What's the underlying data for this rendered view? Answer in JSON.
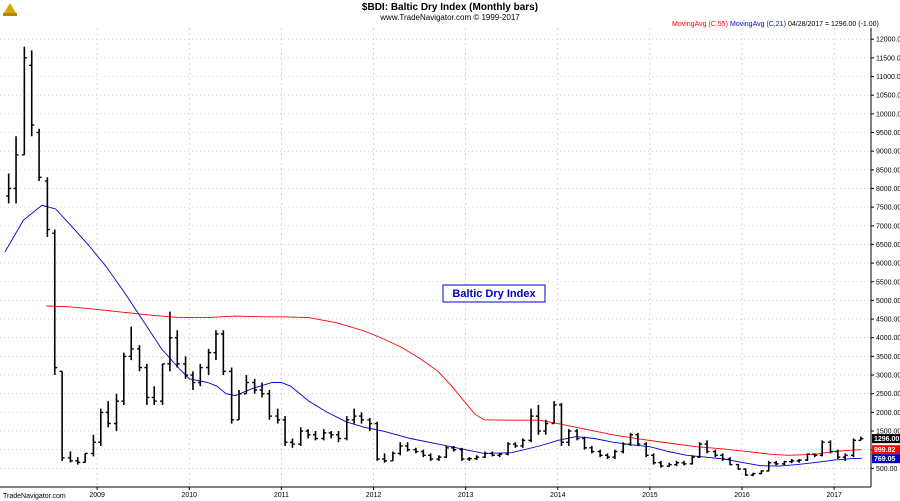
{
  "header": {
    "title": "$BDI:  Baltic Dry Index  (Monthly bars)",
    "subtitle": "www.TradeNavigator.com © 1999-2017"
  },
  "legend": {
    "ma55_label": "MovingAvg (C,55)",
    "ma21_label": "MovingAvg (C,21)",
    "last_info": "04/28/2017 = 1296.00 (-1.00)"
  },
  "annotation": {
    "text": "Baltic Dry Index"
  },
  "brand": "TradeNavigator.com",
  "colors": {
    "bars": "#000000",
    "ma55": "#ff0000",
    "ma21": "#0000cc",
    "grid": "#bbbbbb",
    "price_badge": "#000000"
  },
  "badges": {
    "price": "1296.00",
    "ma55": "999.82",
    "ma21": "769.05"
  },
  "chart_data": {
    "type": "ohlc",
    "title": "$BDI:  Baltic Dry Index  (Monthly bars)",
    "y_ticks": [
      "500.00",
      "1000.00",
      "1500.00",
      "2000.00",
      "2500.00",
      "3000.00",
      "3500.00",
      "4000.00",
      "4500.00",
      "5000.00",
      "5500.00",
      "6000.00",
      "6500.00",
      "7000.00",
      "7500.00",
      "8000.00",
      "8500.00",
      "9000.00",
      "9500.00",
      "10000.00",
      "10500.00",
      "11000.00",
      "11500.00",
      "12000.00"
    ],
    "ylim": [
      0,
      12300
    ],
    "x_ticks": [
      "2009",
      "2010",
      "2011",
      "2012",
      "2013",
      "2014",
      "2015",
      "2016",
      "2017"
    ],
    "x_range": [
      2008.0,
      2017.4
    ],
    "grid": true,
    "bars": [
      {
        "t": 2008.04,
        "o": 7800,
        "h": 8400,
        "l": 7600,
        "c": 8000
      },
      {
        "t": 2008.12,
        "o": 8000,
        "h": 9400,
        "l": 7600,
        "c": 8900
      },
      {
        "t": 2008.21,
        "o": 8900,
        "h": 11800,
        "l": 8900,
        "c": 11500
      },
      {
        "t": 2008.29,
        "o": 11300,
        "h": 11700,
        "l": 9400,
        "c": 9700
      },
      {
        "t": 2008.37,
        "o": 9500,
        "h": 9600,
        "l": 8200,
        "c": 8300
      },
      {
        "t": 2008.46,
        "o": 8200,
        "h": 8300,
        "l": 6700,
        "c": 6900
      },
      {
        "t": 2008.54,
        "o": 6800,
        "h": 6900,
        "l": 3000,
        "c": 3200
      },
      {
        "t": 2008.62,
        "o": 3100,
        "h": 3100,
        "l": 700,
        "c": 780
      },
      {
        "t": 2008.71,
        "o": 780,
        "h": 950,
        "l": 660,
        "c": 700
      },
      {
        "t": 2008.79,
        "o": 700,
        "h": 800,
        "l": 600,
        "c": 660
      },
      {
        "t": 2008.87,
        "o": 660,
        "h": 900,
        "l": 650,
        "c": 900
      },
      {
        "t": 2008.96,
        "o": 900,
        "h": 1400,
        "l": 820,
        "c": 1200
      },
      {
        "t": 2009.04,
        "o": 1200,
        "h": 2100,
        "l": 1100,
        "c": 2000
      },
      {
        "t": 2009.12,
        "o": 2000,
        "h": 2300,
        "l": 1600,
        "c": 1700
      },
      {
        "t": 2009.21,
        "o": 1700,
        "h": 2500,
        "l": 1500,
        "c": 2300
      },
      {
        "t": 2009.29,
        "o": 2300,
        "h": 3600,
        "l": 2200,
        "c": 3500
      },
      {
        "t": 2009.37,
        "o": 3500,
        "h": 4300,
        "l": 3400,
        "c": 3700
      },
      {
        "t": 2009.46,
        "o": 3700,
        "h": 3800,
        "l": 3100,
        "c": 3200
      },
      {
        "t": 2009.54,
        "o": 3200,
        "h": 3300,
        "l": 2200,
        "c": 2400
      },
      {
        "t": 2009.62,
        "o": 2400,
        "h": 2700,
        "l": 2200,
        "c": 2300
      },
      {
        "t": 2009.71,
        "o": 2300,
        "h": 3300,
        "l": 2200,
        "c": 3300
      },
      {
        "t": 2009.79,
        "o": 3300,
        "h": 4700,
        "l": 3100,
        "c": 4000
      },
      {
        "t": 2009.87,
        "o": 4000,
        "h": 4200,
        "l": 3200,
        "c": 3300
      },
      {
        "t": 2009.96,
        "o": 3300,
        "h": 3500,
        "l": 2900,
        "c": 3000
      },
      {
        "t": 2010.04,
        "o": 3000,
        "h": 3100,
        "l": 2600,
        "c": 2800
      },
      {
        "t": 2010.12,
        "o": 2800,
        "h": 3300,
        "l": 2700,
        "c": 3200
      },
      {
        "t": 2010.21,
        "o": 3200,
        "h": 3700,
        "l": 3000,
        "c": 3600
      },
      {
        "t": 2010.29,
        "o": 3600,
        "h": 4200,
        "l": 3400,
        "c": 4100
      },
      {
        "t": 2010.37,
        "o": 4100,
        "h": 4200,
        "l": 3000,
        "c": 3100
      },
      {
        "t": 2010.46,
        "o": 3100,
        "h": 3200,
        "l": 1700,
        "c": 1800
      },
      {
        "t": 2010.54,
        "o": 1800,
        "h": 2600,
        "l": 1800,
        "c": 2500
      },
      {
        "t": 2010.62,
        "o": 2500,
        "h": 3000,
        "l": 2500,
        "c": 2800
      },
      {
        "t": 2010.71,
        "o": 2800,
        "h": 2900,
        "l": 2500,
        "c": 2600
      },
      {
        "t": 2010.79,
        "o": 2600,
        "h": 2800,
        "l": 2400,
        "c": 2500
      },
      {
        "t": 2010.87,
        "o": 2500,
        "h": 2600,
        "l": 1800,
        "c": 1900
      },
      {
        "t": 2010.96,
        "o": 1900,
        "h": 2100,
        "l": 1700,
        "c": 1800
      },
      {
        "t": 2011.04,
        "o": 1800,
        "h": 1900,
        "l": 1100,
        "c": 1200
      },
      {
        "t": 2011.12,
        "o": 1200,
        "h": 1300,
        "l": 1050,
        "c": 1150
      },
      {
        "t": 2011.21,
        "o": 1150,
        "h": 1600,
        "l": 1100,
        "c": 1500
      },
      {
        "t": 2011.29,
        "o": 1500,
        "h": 1550,
        "l": 1300,
        "c": 1400
      },
      {
        "t": 2011.37,
        "o": 1400,
        "h": 1500,
        "l": 1250,
        "c": 1300
      },
      {
        "t": 2011.46,
        "o": 1300,
        "h": 1550,
        "l": 1250,
        "c": 1450
      },
      {
        "t": 2011.54,
        "o": 1450,
        "h": 1500,
        "l": 1300,
        "c": 1400
      },
      {
        "t": 2011.62,
        "o": 1400,
        "h": 1500,
        "l": 1200,
        "c": 1300
      },
      {
        "t": 2011.71,
        "o": 1300,
        "h": 1900,
        "l": 1250,
        "c": 1800
      },
      {
        "t": 2011.79,
        "o": 1800,
        "h": 2100,
        "l": 1700,
        "c": 1900
      },
      {
        "t": 2011.87,
        "o": 1900,
        "h": 2000,
        "l": 1700,
        "c": 1800
      },
      {
        "t": 2011.96,
        "o": 1800,
        "h": 1850,
        "l": 1500,
        "c": 1700
      },
      {
        "t": 2012.04,
        "o": 1700,
        "h": 1750,
        "l": 700,
        "c": 750
      },
      {
        "t": 2012.12,
        "o": 750,
        "h": 900,
        "l": 650,
        "c": 700
      },
      {
        "t": 2012.21,
        "o": 700,
        "h": 950,
        "l": 700,
        "c": 900
      },
      {
        "t": 2012.29,
        "o": 900,
        "h": 1200,
        "l": 850,
        "c": 1100
      },
      {
        "t": 2012.37,
        "o": 1100,
        "h": 1200,
        "l": 950,
        "c": 1000
      },
      {
        "t": 2012.46,
        "o": 1000,
        "h": 1050,
        "l": 900,
        "c": 950
      },
      {
        "t": 2012.54,
        "o": 950,
        "h": 1000,
        "l": 800,
        "c": 850
      },
      {
        "t": 2012.62,
        "o": 850,
        "h": 900,
        "l": 700,
        "c": 750
      },
      {
        "t": 2012.71,
        "o": 750,
        "h": 850,
        "l": 700,
        "c": 800
      },
      {
        "t": 2012.79,
        "o": 800,
        "h": 1100,
        "l": 780,
        "c": 1050
      },
      {
        "t": 2012.87,
        "o": 1050,
        "h": 1100,
        "l": 950,
        "c": 1000
      },
      {
        "t": 2012.96,
        "o": 1000,
        "h": 1050,
        "l": 700,
        "c": 750
      },
      {
        "t": 2013.04,
        "o": 750,
        "h": 800,
        "l": 700,
        "c": 760
      },
      {
        "t": 2013.12,
        "o": 760,
        "h": 850,
        "l": 720,
        "c": 800
      },
      {
        "t": 2013.21,
        "o": 800,
        "h": 950,
        "l": 780,
        "c": 900
      },
      {
        "t": 2013.29,
        "o": 900,
        "h": 950,
        "l": 820,
        "c": 850
      },
      {
        "t": 2013.37,
        "o": 850,
        "h": 900,
        "l": 800,
        "c": 880
      },
      {
        "t": 2013.46,
        "o": 880,
        "h": 1200,
        "l": 850,
        "c": 1150
      },
      {
        "t": 2013.54,
        "o": 1150,
        "h": 1200,
        "l": 1050,
        "c": 1100
      },
      {
        "t": 2013.62,
        "o": 1100,
        "h": 1300,
        "l": 1050,
        "c": 1250
      },
      {
        "t": 2013.71,
        "o": 1250,
        "h": 2100,
        "l": 1200,
        "c": 1900
      },
      {
        "t": 2013.79,
        "o": 1900,
        "h": 2200,
        "l": 1400,
        "c": 1500
      },
      {
        "t": 2013.87,
        "o": 1500,
        "h": 1800,
        "l": 1400,
        "c": 1700
      },
      {
        "t": 2013.96,
        "o": 1700,
        "h": 2300,
        "l": 1700,
        "c": 2200
      },
      {
        "t": 2014.04,
        "o": 2200,
        "h": 2250,
        "l": 1100,
        "c": 1200
      },
      {
        "t": 2014.12,
        "o": 1200,
        "h": 1550,
        "l": 1100,
        "c": 1500
      },
      {
        "t": 2014.21,
        "o": 1500,
        "h": 1550,
        "l": 1250,
        "c": 1300
      },
      {
        "t": 2014.29,
        "o": 1300,
        "h": 1350,
        "l": 1000,
        "c": 1050
      },
      {
        "t": 2014.37,
        "o": 1050,
        "h": 1100,
        "l": 900,
        "c": 950
      },
      {
        "t": 2014.46,
        "o": 950,
        "h": 1000,
        "l": 800,
        "c": 850
      },
      {
        "t": 2014.54,
        "o": 850,
        "h": 900,
        "l": 750,
        "c": 800
      },
      {
        "t": 2014.62,
        "o": 800,
        "h": 1000,
        "l": 750,
        "c": 950
      },
      {
        "t": 2014.71,
        "o": 950,
        "h": 1200,
        "l": 900,
        "c": 1150
      },
      {
        "t": 2014.79,
        "o": 1150,
        "h": 1450,
        "l": 1100,
        "c": 1400
      },
      {
        "t": 2014.87,
        "o": 1400,
        "h": 1450,
        "l": 1100,
        "c": 1150
      },
      {
        "t": 2014.96,
        "o": 1150,
        "h": 1200,
        "l": 800,
        "c": 850
      },
      {
        "t": 2015.04,
        "o": 850,
        "h": 900,
        "l": 600,
        "c": 650
      },
      {
        "t": 2015.12,
        "o": 650,
        "h": 700,
        "l": 520,
        "c": 560
      },
      {
        "t": 2015.21,
        "o": 560,
        "h": 650,
        "l": 540,
        "c": 600
      },
      {
        "t": 2015.29,
        "o": 600,
        "h": 700,
        "l": 560,
        "c": 650
      },
      {
        "t": 2015.37,
        "o": 650,
        "h": 700,
        "l": 580,
        "c": 620
      },
      {
        "t": 2015.46,
        "o": 620,
        "h": 850,
        "l": 600,
        "c": 800
      },
      {
        "t": 2015.54,
        "o": 800,
        "h": 1200,
        "l": 780,
        "c": 1150
      },
      {
        "t": 2015.62,
        "o": 1150,
        "h": 1250,
        "l": 900,
        "c": 950
      },
      {
        "t": 2015.71,
        "o": 950,
        "h": 1000,
        "l": 800,
        "c": 850
      },
      {
        "t": 2015.79,
        "o": 850,
        "h": 900,
        "l": 700,
        "c": 750
      },
      {
        "t": 2015.87,
        "o": 750,
        "h": 800,
        "l": 580,
        "c": 600
      },
      {
        "t": 2015.96,
        "o": 600,
        "h": 620,
        "l": 460,
        "c": 480
      },
      {
        "t": 2016.04,
        "o": 480,
        "h": 500,
        "l": 300,
        "c": 320
      },
      {
        "t": 2016.12,
        "o": 320,
        "h": 380,
        "l": 290,
        "c": 360
      },
      {
        "t": 2016.21,
        "o": 360,
        "h": 450,
        "l": 350,
        "c": 430
      },
      {
        "t": 2016.29,
        "o": 430,
        "h": 700,
        "l": 420,
        "c": 650
      },
      {
        "t": 2016.37,
        "o": 650,
        "h": 700,
        "l": 580,
        "c": 620
      },
      {
        "t": 2016.46,
        "o": 620,
        "h": 700,
        "l": 590,
        "c": 680
      },
      {
        "t": 2016.54,
        "o": 680,
        "h": 750,
        "l": 640,
        "c": 700
      },
      {
        "t": 2016.62,
        "o": 700,
        "h": 750,
        "l": 650,
        "c": 720
      },
      {
        "t": 2016.71,
        "o": 720,
        "h": 900,
        "l": 700,
        "c": 880
      },
      {
        "t": 2016.79,
        "o": 880,
        "h": 900,
        "l": 800,
        "c": 850
      },
      {
        "t": 2016.87,
        "o": 850,
        "h": 1250,
        "l": 820,
        "c": 1200
      },
      {
        "t": 2016.96,
        "o": 1200,
        "h": 1250,
        "l": 900,
        "c": 950
      },
      {
        "t": 2017.04,
        "o": 950,
        "h": 1000,
        "l": 750,
        "c": 800
      },
      {
        "t": 2017.12,
        "o": 800,
        "h": 900,
        "l": 700,
        "c": 850
      },
      {
        "t": 2017.21,
        "o": 850,
        "h": 1300,
        "l": 800,
        "c": 1250
      },
      {
        "t": 2017.29,
        "o": 1250,
        "h": 1350,
        "l": 1250,
        "c": 1296
      }
    ],
    "series": [
      {
        "name": "MovingAvg (C,55)",
        "color": "#ff0000",
        "points": [
          [
            2008.45,
            4850
          ],
          [
            2008.7,
            4830
          ],
          [
            2009.0,
            4760
          ],
          [
            2009.3,
            4680
          ],
          [
            2009.6,
            4600
          ],
          [
            2009.9,
            4540
          ],
          [
            2010.2,
            4540
          ],
          [
            2010.5,
            4580
          ],
          [
            2010.8,
            4560
          ],
          [
            2011.0,
            4560
          ],
          [
            2011.3,
            4540
          ],
          [
            2011.6,
            4400
          ],
          [
            2011.9,
            4180
          ],
          [
            2012.1,
            3980
          ],
          [
            2012.3,
            3750
          ],
          [
            2012.5,
            3450
          ],
          [
            2012.7,
            3100
          ],
          [
            2012.85,
            2700
          ],
          [
            2013.0,
            2250
          ],
          [
            2013.1,
            1950
          ],
          [
            2013.2,
            1800
          ],
          [
            2013.5,
            1790
          ],
          [
            2013.8,
            1790
          ],
          [
            2014.0,
            1700
          ],
          [
            2014.3,
            1550
          ],
          [
            2014.6,
            1400
          ],
          [
            2014.9,
            1280
          ],
          [
            2015.2,
            1180
          ],
          [
            2015.5,
            1080
          ],
          [
            2015.8,
            1020
          ],
          [
            2016.1,
            940
          ],
          [
            2016.3,
            880
          ],
          [
            2016.5,
            850
          ],
          [
            2016.8,
            880
          ],
          [
            2017.0,
            950
          ],
          [
            2017.2,
            990
          ],
          [
            2017.3,
            1000
          ]
        ]
      },
      {
        "name": "MovingAvg (C,21)",
        "color": "#0000cc",
        "points": [
          [
            2008.0,
            6300
          ],
          [
            2008.2,
            7150
          ],
          [
            2008.4,
            7550
          ],
          [
            2008.55,
            7450
          ],
          [
            2008.7,
            7050
          ],
          [
            2008.9,
            6500
          ],
          [
            2009.1,
            5900
          ],
          [
            2009.3,
            5200
          ],
          [
            2009.5,
            4450
          ],
          [
            2009.7,
            3700
          ],
          [
            2009.9,
            3150
          ],
          [
            2010.0,
            2900
          ],
          [
            2010.2,
            2800
          ],
          [
            2010.3,
            2700
          ],
          [
            2010.4,
            2500
          ],
          [
            2010.5,
            2450
          ],
          [
            2010.7,
            2650
          ],
          [
            2010.9,
            2800
          ],
          [
            2011.0,
            2800
          ],
          [
            2011.1,
            2700
          ],
          [
            2011.3,
            2300
          ],
          [
            2011.5,
            2000
          ],
          [
            2011.7,
            1750
          ],
          [
            2011.9,
            1600
          ],
          [
            2012.1,
            1500
          ],
          [
            2012.4,
            1300
          ],
          [
            2012.7,
            1150
          ],
          [
            2013.0,
            1000
          ],
          [
            2013.2,
            900
          ],
          [
            2013.5,
            920
          ],
          [
            2013.8,
            1100
          ],
          [
            2014.0,
            1250
          ],
          [
            2014.2,
            1350
          ],
          [
            2014.4,
            1300
          ],
          [
            2014.6,
            1200
          ],
          [
            2014.8,
            1130
          ],
          [
            2015.0,
            1080
          ],
          [
            2015.2,
            950
          ],
          [
            2015.4,
            850
          ],
          [
            2015.6,
            800
          ],
          [
            2015.8,
            750
          ],
          [
            2016.0,
            660
          ],
          [
            2016.2,
            570
          ],
          [
            2016.4,
            560
          ],
          [
            2016.6,
            600
          ],
          [
            2016.8,
            660
          ],
          [
            2017.0,
            720
          ],
          [
            2017.2,
            760
          ],
          [
            2017.3,
            770
          ]
        ]
      }
    ]
  }
}
